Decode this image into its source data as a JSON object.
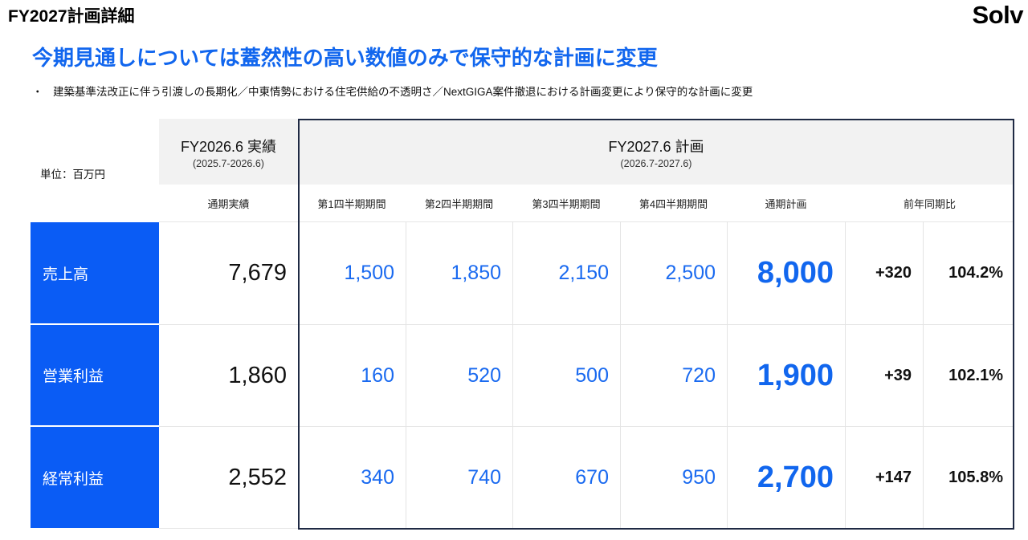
{
  "header": {
    "title": "FY2027計画詳細",
    "logo": "Solv"
  },
  "headline": "今期見通しについては蓋然性の高い数値のみで保守的な計画に変更",
  "bullet": "建築基準法改正に伴う引渡しの長期化／中東情勢における住宅供給の不透明さ／NextGIGA案件撤退における計画変更により保守的な計画に変更",
  "table": {
    "unit": "単位：百万円",
    "actual_group": {
      "title": "FY2026.6 実績",
      "period": "(2025.7-2026.6)"
    },
    "plan_group": {
      "title": "FY2027.6 計画",
      "period": "(2026.7-2027.6)"
    },
    "columns": [
      "通期実績",
      "第1四半期期間",
      "第2四半期期間",
      "第3四半期期間",
      "第4四半期期間",
      "通期計画",
      "前年同期比"
    ],
    "rows": [
      {
        "label": "売上高",
        "actual": "7,679",
        "q1": "1,500",
        "q2": "1,850",
        "q3": "2,150",
        "q4": "2,500",
        "plan": "8,000",
        "diff": "+320",
        "ratio": "104.2%"
      },
      {
        "label": "営業利益",
        "actual": "1,860",
        "q1": "160",
        "q2": "520",
        "q3": "500",
        "q4": "720",
        "plan": "1,900",
        "diff": "+39",
        "ratio": "102.1%"
      },
      {
        "label": "経常利益",
        "actual": "2,552",
        "q1": "340",
        "q2": "740",
        "q3": "670",
        "q4": "950",
        "plan": "2,700",
        "diff": "+147",
        "ratio": "105.8%"
      }
    ]
  }
}
